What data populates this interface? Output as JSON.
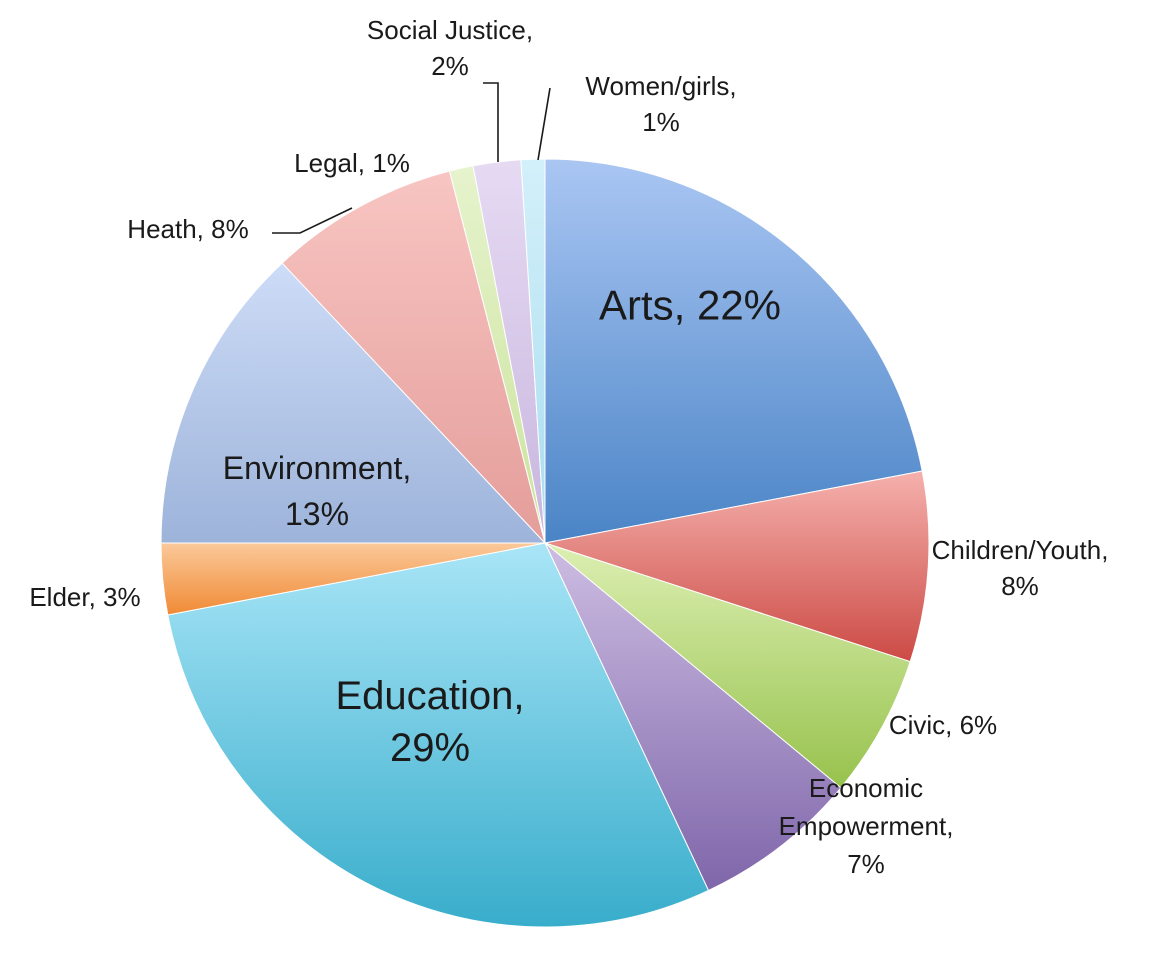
{
  "chart_data": {
    "type": "pie",
    "title": "",
    "legend": "none",
    "start_angle_deg": 0,
    "direction": "clockwise",
    "slices": [
      {
        "name": "Arts",
        "value": 22,
        "label_lines": [
          "Arts, 22%"
        ],
        "color": "#6f9bd8",
        "gradient": [
          "#aac6f3",
          "#4a84c6"
        ]
      },
      {
        "name": "Children/Youth",
        "value": 8,
        "label_lines": [
          "Children/Youth,",
          "8%"
        ],
        "color": "#e2706b",
        "gradient": [
          "#f5b1ad",
          "#cc4a45"
        ]
      },
      {
        "name": "Civic",
        "value": 6,
        "label_lines": [
          "Civic, 6%"
        ],
        "color": "#b7d779",
        "gradient": [
          "#dcefb2",
          "#97c24d"
        ]
      },
      {
        "name": "Economic Empowerment",
        "value": 7,
        "label_lines": [
          "Economic",
          "Empowerment,",
          "7%"
        ],
        "color": "#a68cc4",
        "gradient": [
          "#cdbde2",
          "#7f66aa"
        ]
      },
      {
        "name": "Education",
        "value": 29,
        "label_lines": [
          "Education,",
          "29%"
        ],
        "color": "#6fc6de",
        "gradient": [
          "#a9e5f7",
          "#38adcb"
        ]
      },
      {
        "name": "Elder",
        "value": 3,
        "label_lines": [
          "Elder, 3%"
        ],
        "color": "#f6ad6a",
        "gradient": [
          "#fbc99a",
          "#f08a35"
        ]
      },
      {
        "name": "Environment",
        "value": 13,
        "label_lines": [
          "Environment,",
          "13%"
        ],
        "color": "#b3c5e6",
        "gradient": [
          "#cddcf7",
          "#9db3da"
        ]
      },
      {
        "name": "Heath",
        "value": 8,
        "label_lines": [
          "Heath, 8%"
        ],
        "color": "#f0b0ad",
        "gradient": [
          "#f8c5c2",
          "#e49d9a"
        ]
      },
      {
        "name": "Legal",
        "value": 1,
        "label_lines": [
          "Legal, 1%"
        ],
        "color": "#d9ecb6",
        "gradient": [
          "#e6f3cd",
          "#cbe39c"
        ]
      },
      {
        "name": "Social Justice",
        "value": 2,
        "label_lines": [
          "Social Justice,",
          "2%"
        ],
        "color": "#d8c8ea",
        "gradient": [
          "#e6daf3",
          "#c8b6de"
        ]
      },
      {
        "name": "Women/girls",
        "value": 1,
        "label_lines": [
          "Women/girls,",
          "1%"
        ],
        "color": "#bfe6f5",
        "gradient": [
          "#d3f0fa",
          "#a9dcef"
        ]
      }
    ]
  }
}
